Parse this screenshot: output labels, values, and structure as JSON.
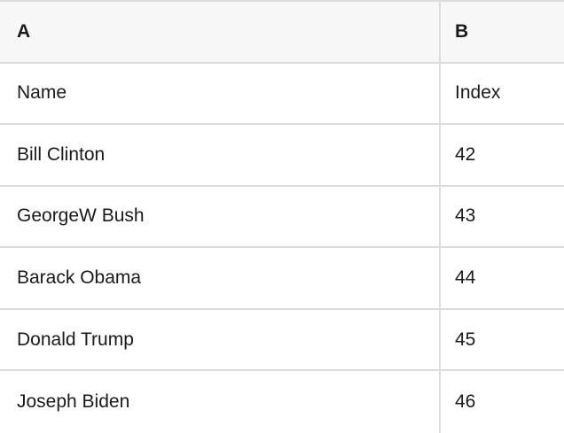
{
  "table": {
    "columns": [
      {
        "label": "A"
      },
      {
        "label": "B"
      }
    ],
    "rows": [
      {
        "a": "Name",
        "b": "Index"
      },
      {
        "a": "Bill Clinton",
        "b": "42"
      },
      {
        "a": "GeorgeW Bush",
        "b": "43"
      },
      {
        "a": "Barack Obama",
        "b": "44"
      },
      {
        "a": "Donald Trump",
        "b": "45"
      },
      {
        "a": "Joseph Biden",
        "b": "46"
      }
    ]
  },
  "colors": {
    "header_bg": "#f7f7f7",
    "border": "#dcdcdc",
    "text": "#1a1a1a",
    "cell_bg": "#ffffff"
  }
}
